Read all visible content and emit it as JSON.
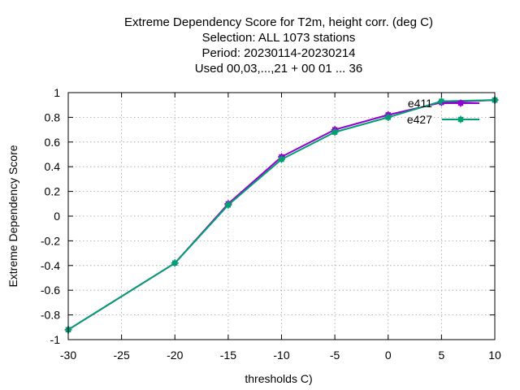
{
  "chart_data": {
    "type": "line",
    "title_lines": [
      "Extreme Dependency Score  for T2m, height corr. (deg C)",
      "Selection: ALL   1073 stations",
      "Period: 20230114-20230214",
      "Used  00,03,...,21  + 00 01 ... 36"
    ],
    "xlabel": "thresholds C)",
    "ylabel": "Extreme Dependency Score",
    "xlim": [
      -30,
      10
    ],
    "ylim": [
      -1,
      1
    ],
    "xticks": [
      -30,
      -25,
      -20,
      -15,
      -10,
      -5,
      0,
      5,
      10
    ],
    "yticks": [
      -1,
      -0.8,
      -0.6,
      -0.4,
      -0.2,
      0,
      0.2,
      0.4,
      0.6,
      0.8,
      1
    ],
    "xtick_labels": [
      "-30",
      "-25",
      "-20",
      "-15",
      "-10",
      "-5",
      "0",
      "5",
      "10"
    ],
    "ytick_labels": [
      "-1",
      "-0.8",
      "-0.6",
      "-0.4",
      "-0.2",
      "0",
      "0.2",
      "0.4",
      "0.6",
      "0.8",
      "1"
    ],
    "grid": true,
    "legend_position": "top-right",
    "series": [
      {
        "name": "e411",
        "color": "#9400d3",
        "x": [
          -30,
          -20,
          -15,
          -10,
          -5,
          0,
          5,
          10
        ],
        "y": [
          -0.92,
          -0.38,
          0.1,
          0.48,
          0.7,
          0.82,
          0.92,
          0.94
        ]
      },
      {
        "name": "e427",
        "color": "#009e73",
        "x": [
          -30,
          -20,
          -15,
          -10,
          -5,
          0,
          5,
          10
        ],
        "y": [
          -0.92,
          -0.38,
          0.09,
          0.46,
          0.68,
          0.8,
          0.93,
          0.94
        ]
      }
    ]
  }
}
